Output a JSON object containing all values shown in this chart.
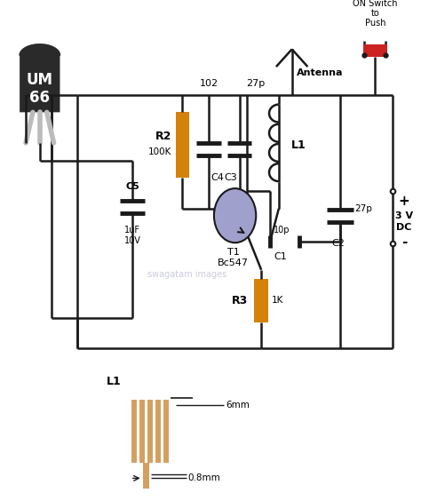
{
  "bg_color": "#ffffff",
  "line_color": "#1a1a1a",
  "orange_color": "#d4820a",
  "orange_light": "#e8a060",
  "gray_dark": "#2a2a2a",
  "gray_mid": "#888888",
  "gray_light": "#bbbbbb",
  "purple_color": "#a0a0cc",
  "red_color": "#cc2222",
  "watermark": "swagatam images",
  "R2_label": "R2",
  "R2_val": "100K",
  "R3_label": "R3",
  "R3_val": "1K",
  "C1_label": "C1",
  "C1_val": "10p",
  "C2_label": "C2",
  "C2_val": "27p",
  "C3_label": "C3",
  "C4_label": "C4",
  "C5_label": "C5",
  "C5_val1": "1uF",
  "C5_val2": "10V",
  "L1_label": "L1",
  "T1_label": "T1",
  "T1_val": "Bc547",
  "UM66_label1": "UM",
  "UM66_label2": "66",
  "node1_val": "102",
  "node2_val": "27p",
  "antenna_label": "Antenna",
  "switch_label1": "Push",
  "switch_label2": "to",
  "switch_label3": "ON Switch",
  "dc_plus": "+",
  "dc_val": "3 V",
  "dc_label": "DC",
  "dc_minus": "-",
  "L1_diagram_label": "L1",
  "L1_dim1": "6mm",
  "L1_dim2": "0.8mm"
}
